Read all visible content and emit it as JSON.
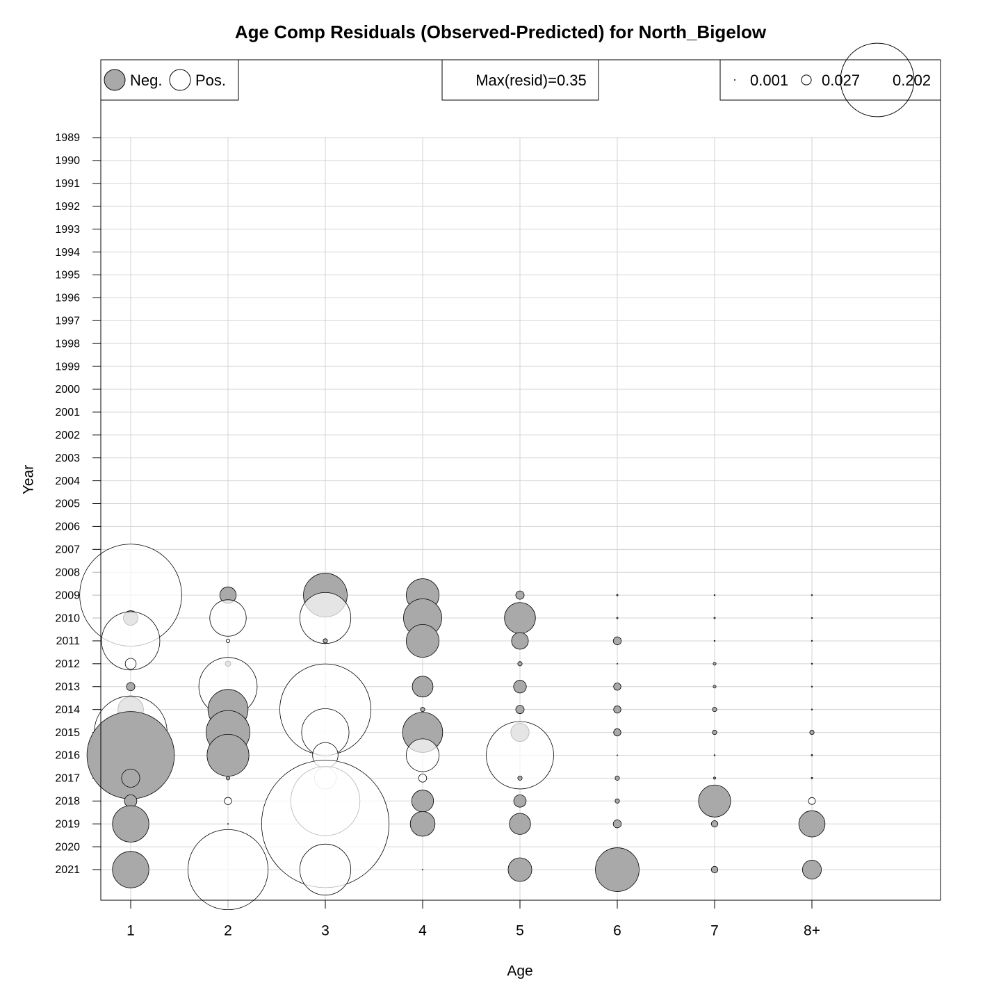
{
  "chart_data": {
    "type": "bubble",
    "title": "Age Comp Residuals (Observed-Predicted) for North_Bigelow",
    "x_label": "Age",
    "y_label": "Year",
    "categories": [
      "1",
      "2",
      "3",
      "4",
      "5",
      "6",
      "7",
      "8+"
    ],
    "years": [
      1989,
      1990,
      1991,
      1992,
      1993,
      1994,
      1995,
      1996,
      1997,
      1998,
      1999,
      2000,
      2001,
      2002,
      2003,
      2004,
      2005,
      2006,
      2007,
      2008,
      2009,
      2010,
      2011,
      2012,
      2013,
      2014,
      2015,
      2016,
      2017,
      2018,
      2019,
      2020,
      2021
    ],
    "neg_color": "#a9a9a9",
    "pos_color": "#ffffff",
    "grid": true,
    "legend": {
      "neg_label": "Neg.",
      "pos_label": "Pos.",
      "max_label": "Max(resid)=0.35",
      "sizes": [
        0.001,
        0.027,
        0.202
      ]
    },
    "values": [
      [
        null,
        null,
        null,
        null,
        null,
        null,
        null,
        null,
        null,
        null,
        null,
        null,
        null,
        null,
        null,
        null,
        null,
        null,
        null,
        null,
        0.28,
        -0.04,
        0.16,
        0.03,
        -0.023,
        -0.07,
        0.2,
        -0.24,
        -0.05,
        -0.034,
        -0.1,
        null,
        -0.1
      ],
      [
        null,
        null,
        null,
        null,
        null,
        null,
        null,
        null,
        null,
        null,
        null,
        null,
        null,
        null,
        null,
        null,
        null,
        null,
        null,
        null,
        -0.045,
        0.1,
        0.01,
        -0.015,
        0.16,
        -0.11,
        -0.12,
        -0.115,
        -0.01,
        0.02,
        -0.002,
        null,
        0.22
      ],
      [
        null,
        null,
        null,
        null,
        null,
        null,
        null,
        null,
        null,
        null,
        null,
        null,
        null,
        null,
        null,
        null,
        null,
        null,
        null,
        null,
        -0.12,
        0.14,
        -0.012,
        null,
        0.001,
        0.25,
        0.13,
        0.07,
        0.06,
        0.19,
        0.35,
        null,
        0.14
      ],
      [
        null,
        null,
        null,
        null,
        null,
        null,
        null,
        null,
        null,
        null,
        null,
        null,
        null,
        null,
        null,
        null,
        null,
        null,
        null,
        null,
        -0.09,
        -0.105,
        -0.09,
        null,
        -0.057,
        -0.012,
        -0.11,
        0.09,
        0.022,
        -0.06,
        -0.068,
        null,
        -0.002
      ],
      [
        null,
        null,
        null,
        null,
        null,
        null,
        null,
        null,
        null,
        null,
        null,
        null,
        null,
        null,
        null,
        null,
        null,
        null,
        null,
        null,
        -0.023,
        -0.085,
        -0.046,
        -0.012,
        -0.035,
        -0.023,
        -0.05,
        0.185,
        -0.012,
        -0.034,
        -0.058,
        null,
        -0.065
      ],
      [
        null,
        null,
        null,
        null,
        null,
        null,
        null,
        null,
        null,
        null,
        null,
        null,
        null,
        null,
        null,
        null,
        null,
        null,
        null,
        null,
        -0.004,
        -0.004,
        -0.022,
        -0.002,
        -0.02,
        -0.02,
        -0.02,
        -0.002,
        -0.012,
        -0.012,
        -0.022,
        null,
        -0.12
      ],
      [
        null,
        null,
        null,
        null,
        null,
        null,
        null,
        null,
        null,
        null,
        null,
        null,
        null,
        null,
        null,
        null,
        null,
        null,
        null,
        null,
        -0.003,
        -0.004,
        -0.003,
        -0.008,
        -0.008,
        -0.012,
        -0.012,
        -0.003,
        -0.006,
        -0.088,
        -0.018,
        null,
        -0.018
      ],
      [
        null,
        null,
        null,
        null,
        null,
        null,
        null,
        null,
        null,
        null,
        null,
        null,
        null,
        null,
        null,
        null,
        null,
        null,
        null,
        null,
        -0.003,
        -0.003,
        -0.003,
        -0.003,
        -0.003,
        -0.003,
        -0.012,
        -0.004,
        -0.004,
        0.019,
        -0.072,
        null,
        -0.052
      ]
    ]
  }
}
